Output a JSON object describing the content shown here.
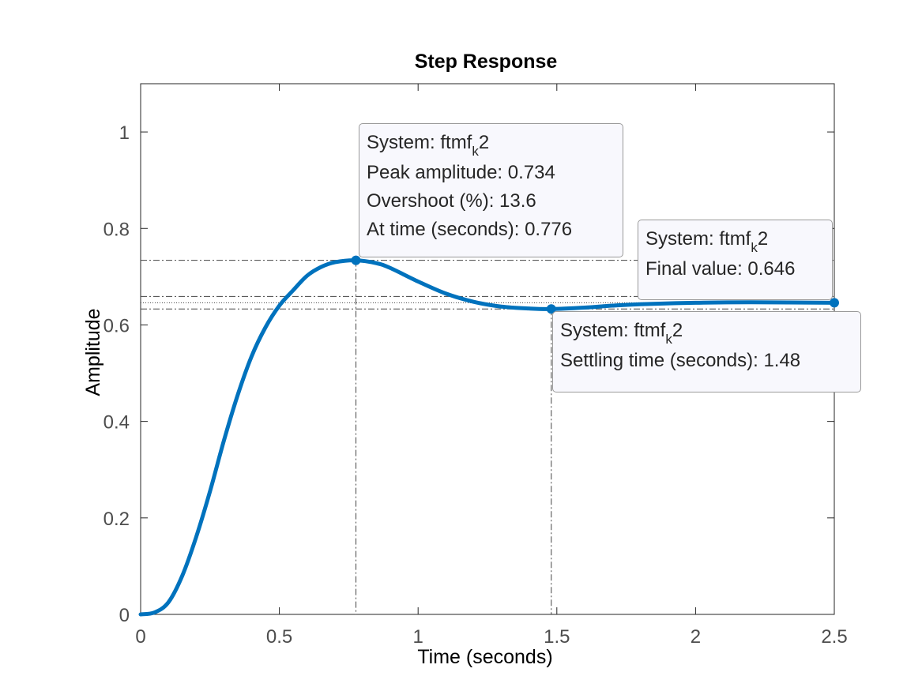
{
  "chart_data": {
    "type": "line",
    "title": "Step Response",
    "xlabel": "Time (seconds)",
    "ylabel": "Amplitude",
    "xlim": [
      0,
      2.5
    ],
    "ylim": [
      0,
      1.1
    ],
    "xticks": [
      "0",
      "0.5",
      "1",
      "1.5",
      "2",
      "2.5"
    ],
    "xtick_values": [
      0,
      0.5,
      1,
      1.5,
      2,
      2.5
    ],
    "yticks": [
      "0",
      "0.2",
      "0.4",
      "0.6",
      "0.8",
      "1"
    ],
    "ytick_values": [
      0,
      0.2,
      0.4,
      0.6,
      0.8,
      1
    ],
    "grid": false,
    "series": [
      {
        "color": "#0072bd",
        "x": [
          0,
          0.05,
          0.1,
          0.15,
          0.2,
          0.25,
          0.3,
          0.35,
          0.4,
          0.45,
          0.5,
          0.55,
          0.6,
          0.65,
          0.7,
          0.776,
          0.85,
          0.9,
          1.0,
          1.1,
          1.2,
          1.3,
          1.4,
          1.48,
          1.6,
          1.7,
          1.8,
          2.0,
          2.2,
          2.5
        ],
        "y": [
          0,
          0.004,
          0.025,
          0.08,
          0.16,
          0.255,
          0.36,
          0.455,
          0.535,
          0.595,
          0.64,
          0.672,
          0.702,
          0.72,
          0.73,
          0.734,
          0.728,
          0.718,
          0.69,
          0.665,
          0.648,
          0.638,
          0.634,
          0.633,
          0.636,
          0.64,
          0.643,
          0.646,
          0.647,
          0.646
        ]
      }
    ],
    "markers": [
      {
        "x": 0.776,
        "y": 0.734
      },
      {
        "x": 1.48,
        "y": 0.633
      },
      {
        "x": 2.5,
        "y": 0.646
      }
    ],
    "reference_lines": {
      "horizontal": [
        0.734,
        0.659,
        0.646,
        0.633
      ],
      "vertical": [
        0.776,
        1.48
      ]
    }
  },
  "annotations": {
    "peak": {
      "system_prefix": "System: ftmf",
      "system_sub": "k",
      "system_suffix": "2",
      "peak_amplitude": "Peak amplitude: 0.734",
      "overshoot": "Overshoot (%): 13.6",
      "at_time": "At time (seconds): 0.776"
    },
    "final": {
      "system_prefix": "System: ftmf",
      "system_sub": "k",
      "system_suffix": "2",
      "final_value": "Final value: 0.646"
    },
    "settling": {
      "system_prefix": "System: ftmf",
      "system_sub": "k",
      "system_suffix": "2",
      "settling_time": "Settling time (seconds): 1.48"
    }
  }
}
